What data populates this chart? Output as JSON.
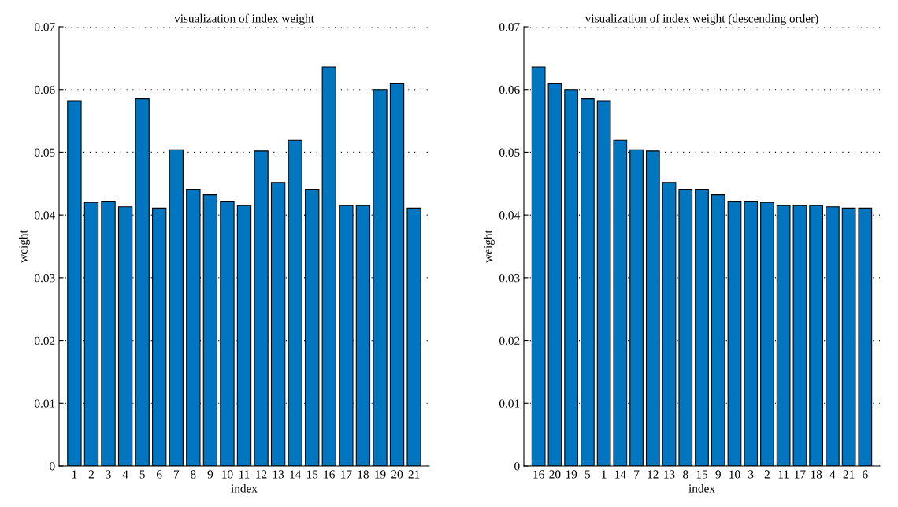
{
  "chart_data": [
    {
      "type": "bar",
      "title": "visualization of index weight",
      "xlabel": "index",
      "ylabel": "weight",
      "categories": [
        "1",
        "2",
        "3",
        "4",
        "5",
        "6",
        "7",
        "8",
        "9",
        "10",
        "11",
        "12",
        "13",
        "14",
        "15",
        "16",
        "17",
        "18",
        "19",
        "20",
        "21"
      ],
      "values": [
        0.0582,
        0.042,
        0.0422,
        0.0413,
        0.0585,
        0.0411,
        0.0504,
        0.0441,
        0.0432,
        0.0422,
        0.0415,
        0.0502,
        0.0452,
        0.0519,
        0.0441,
        0.0636,
        0.0415,
        0.0415,
        0.06,
        0.0609,
        0.0411
      ],
      "color": "#0075c0",
      "ylim": [
        0,
        0.07
      ],
      "yticks": [
        {
          "value": 0,
          "label": "0"
        },
        0.01,
        0.02,
        0.03,
        0.04,
        0.05,
        0.06,
        0.07
      ],
      "grid": "y"
    },
    {
      "type": "bar",
      "title": "visualization of index weight (descending order)",
      "xlabel": "index",
      "ylabel": "weight",
      "categories": [
        "16",
        "20",
        "19",
        "5",
        "1",
        "14",
        "7",
        "12",
        "13",
        "8",
        "15",
        "9",
        "10",
        "3",
        "2",
        "11",
        "17",
        "18",
        "4",
        "21",
        "6"
      ],
      "values": [
        0.0636,
        0.0609,
        0.06,
        0.0585,
        0.0582,
        0.0519,
        0.0504,
        0.0502,
        0.0452,
        0.0441,
        0.0441,
        0.0432,
        0.0422,
        0.0422,
        0.042,
        0.0415,
        0.0415,
        0.0415,
        0.0413,
        0.0411,
        0.0411
      ],
      "color": "#0075c0",
      "ylim": [
        0,
        0.07
      ],
      "yticks": [
        {
          "value": 0,
          "label": "0"
        },
        0.01,
        0.02,
        0.03,
        0.04,
        0.05,
        0.06,
        0.07
      ],
      "grid": "y"
    }
  ]
}
